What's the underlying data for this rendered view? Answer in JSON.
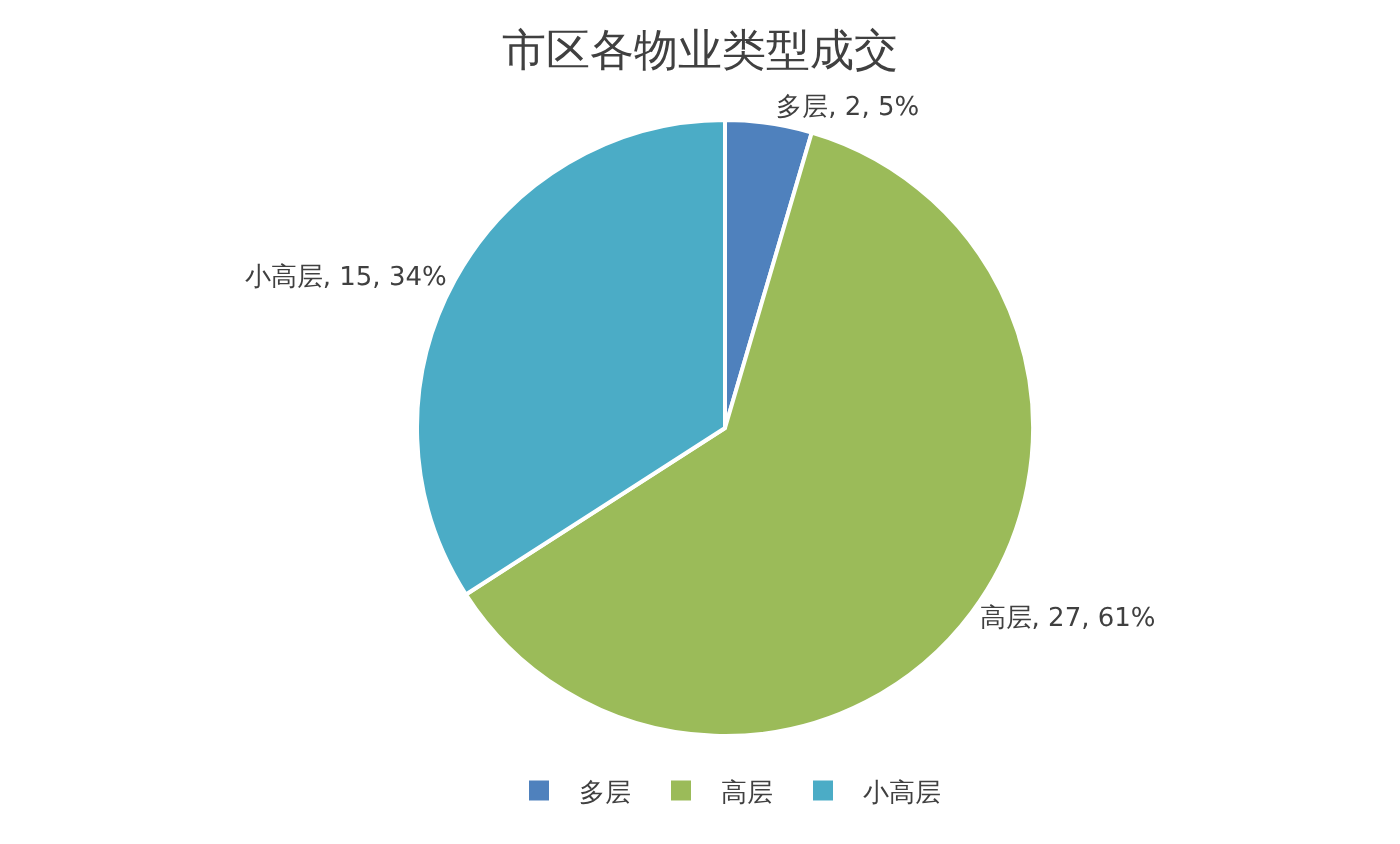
{
  "chart_data": {
    "type": "pie",
    "title": "市区各物业类型成交",
    "categories": [
      "多层",
      "高层",
      "小高层"
    ],
    "values": [
      2,
      27,
      15
    ],
    "colors": [
      "#4f81bd",
      "#9bbb59",
      "#4bacc6"
    ],
    "value_labels": [
      "多层, 2, 5%",
      "高层, 27, 61%",
      "小高层, 15, 34%"
    ],
    "legend": "bottom"
  }
}
